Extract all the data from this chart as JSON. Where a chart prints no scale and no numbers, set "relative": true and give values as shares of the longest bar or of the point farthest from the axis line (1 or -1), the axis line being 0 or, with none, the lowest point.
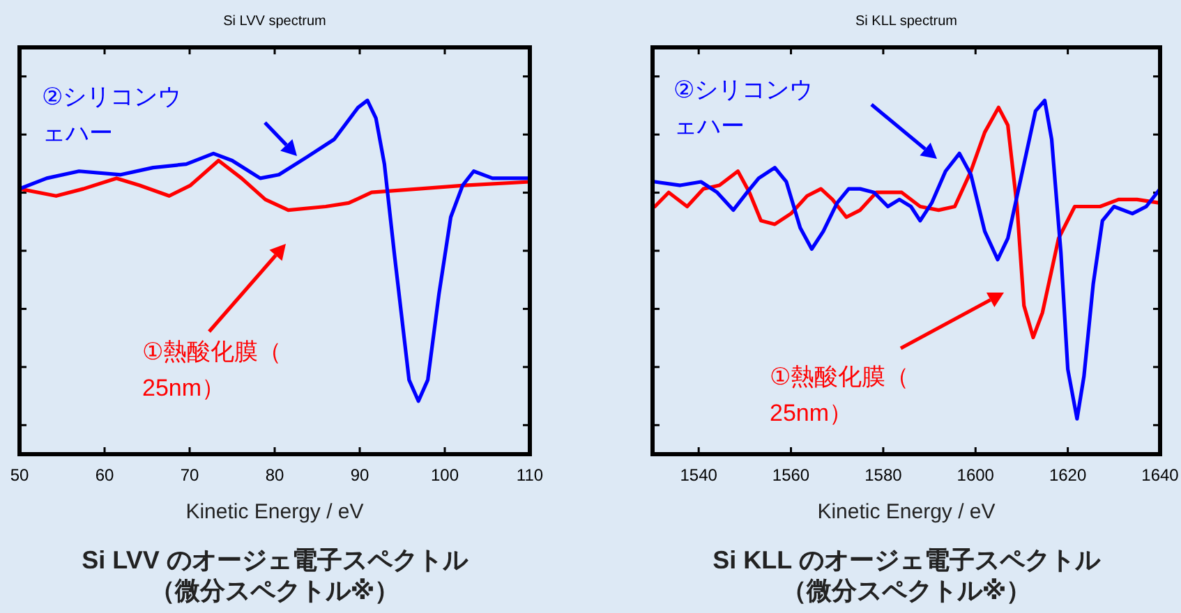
{
  "chart_data": [
    {
      "type": "line",
      "title": "Si LVV spectrum",
      "xlabel": "Kinetic Energy / eV",
      "annotations": [
        "Si LVV のオージェ電子スペクトル",
        "（微分スペクトル※）"
      ],
      "xlim": [
        50,
        110
      ],
      "xticks": [
        50,
        60,
        70,
        80,
        90,
        100,
        110
      ],
      "relative": true,
      "series": [
        {
          "name": "②シリコンウェハー",
          "color": "#0000ff",
          "x": [
            50,
            53.2,
            57.0,
            61.9,
            65.7,
            69.6,
            72.8,
            75.0,
            78.3,
            80.5,
            83.8,
            87.0,
            89.8,
            90.9,
            91.9,
            92.9,
            94.1,
            95.8,
            96.9,
            98.0,
            99.3,
            100.7,
            102.1,
            103.4,
            105.6,
            110
          ],
          "values": [
            0.75,
            0.78,
            0.8,
            0.79,
            0.81,
            0.82,
            0.85,
            0.83,
            0.78,
            0.79,
            0.84,
            0.89,
            0.98,
            1.0,
            0.95,
            0.82,
            0.56,
            0.21,
            0.15,
            0.21,
            0.45,
            0.67,
            0.76,
            0.8,
            0.78,
            0.78
          ]
        },
        {
          "name": "①熱酸化膜（25nm）",
          "color": "#ff0000",
          "x": [
            50,
            54.3,
            57.5,
            61.4,
            64.1,
            67.6,
            70.1,
            73.4,
            76.1,
            78.9,
            81.6,
            86.0,
            88.7,
            91.4,
            96.9,
            102.3,
            110
          ],
          "values": [
            0.75,
            0.73,
            0.75,
            0.78,
            0.76,
            0.73,
            0.76,
            0.83,
            0.78,
            0.72,
            0.69,
            0.7,
            0.71,
            0.74,
            0.75,
            0.76,
            0.77
          ]
        }
      ]
    },
    {
      "type": "line",
      "title": "Si KLL spectrum",
      "xlabel": "Kinetic Energy / eV",
      "annotations": [
        "Si KLL のオージェ電子スペクトル",
        "（微分スペクトル※）"
      ],
      "xlim": [
        1530,
        1640
      ],
      "xticks": [
        1540,
        1560,
        1580,
        1600,
        1620,
        1640
      ],
      "relative": true,
      "series": [
        {
          "name": "②シリコンウェハー",
          "color": "#0000ff",
          "x": [
            1530.5,
            1536,
            1540.5,
            1544,
            1547.5,
            1550.5,
            1553,
            1556.5,
            1559,
            1562,
            1564.5,
            1567,
            1570,
            1572.5,
            1575,
            1578,
            1581,
            1583.5,
            1586,
            1588,
            1590.5,
            1593.5,
            1596.5,
            1599,
            1602,
            1604.8,
            1607,
            1610,
            1613,
            1615,
            1616.5,
            1618.5,
            1620,
            1622,
            1623.5,
            1625.5,
            1627.5,
            1630,
            1634,
            1637,
            1640
          ],
          "values": [
            0.77,
            0.76,
            0.77,
            0.74,
            0.69,
            0.74,
            0.78,
            0.81,
            0.77,
            0.64,
            0.58,
            0.63,
            0.71,
            0.75,
            0.75,
            0.74,
            0.7,
            0.72,
            0.7,
            0.66,
            0.71,
            0.8,
            0.85,
            0.79,
            0.63,
            0.55,
            0.61,
            0.79,
            0.97,
            1.0,
            0.89,
            0.57,
            0.24,
            0.1,
            0.22,
            0.48,
            0.66,
            0.7,
            0.68,
            0.7,
            0.75
          ]
        },
        {
          "name": "①熱酸化膜（25nm）",
          "color": "#ff0000",
          "x": [
            1530.5,
            1533.5,
            1537.5,
            1541,
            1544.5,
            1548.5,
            1551,
            1553.5,
            1556.5,
            1560,
            1563.5,
            1566.5,
            1569,
            1572,
            1575,
            1578.5,
            1584,
            1588,
            1592,
            1595.5,
            1599,
            1602,
            1605,
            1607,
            1609,
            1610.5,
            1612.5,
            1614.5,
            1618,
            1621.5,
            1627,
            1631,
            1635,
            1640
          ],
          "values": [
            0.7,
            0.74,
            0.7,
            0.75,
            0.76,
            0.8,
            0.74,
            0.66,
            0.65,
            0.68,
            0.73,
            0.75,
            0.72,
            0.67,
            0.69,
            0.74,
            0.74,
            0.7,
            0.69,
            0.7,
            0.8,
            0.91,
            0.98,
            0.93,
            0.7,
            0.42,
            0.33,
            0.4,
            0.61,
            0.7,
            0.7,
            0.72,
            0.72,
            0.71
          ]
        }
      ]
    }
  ]
}
